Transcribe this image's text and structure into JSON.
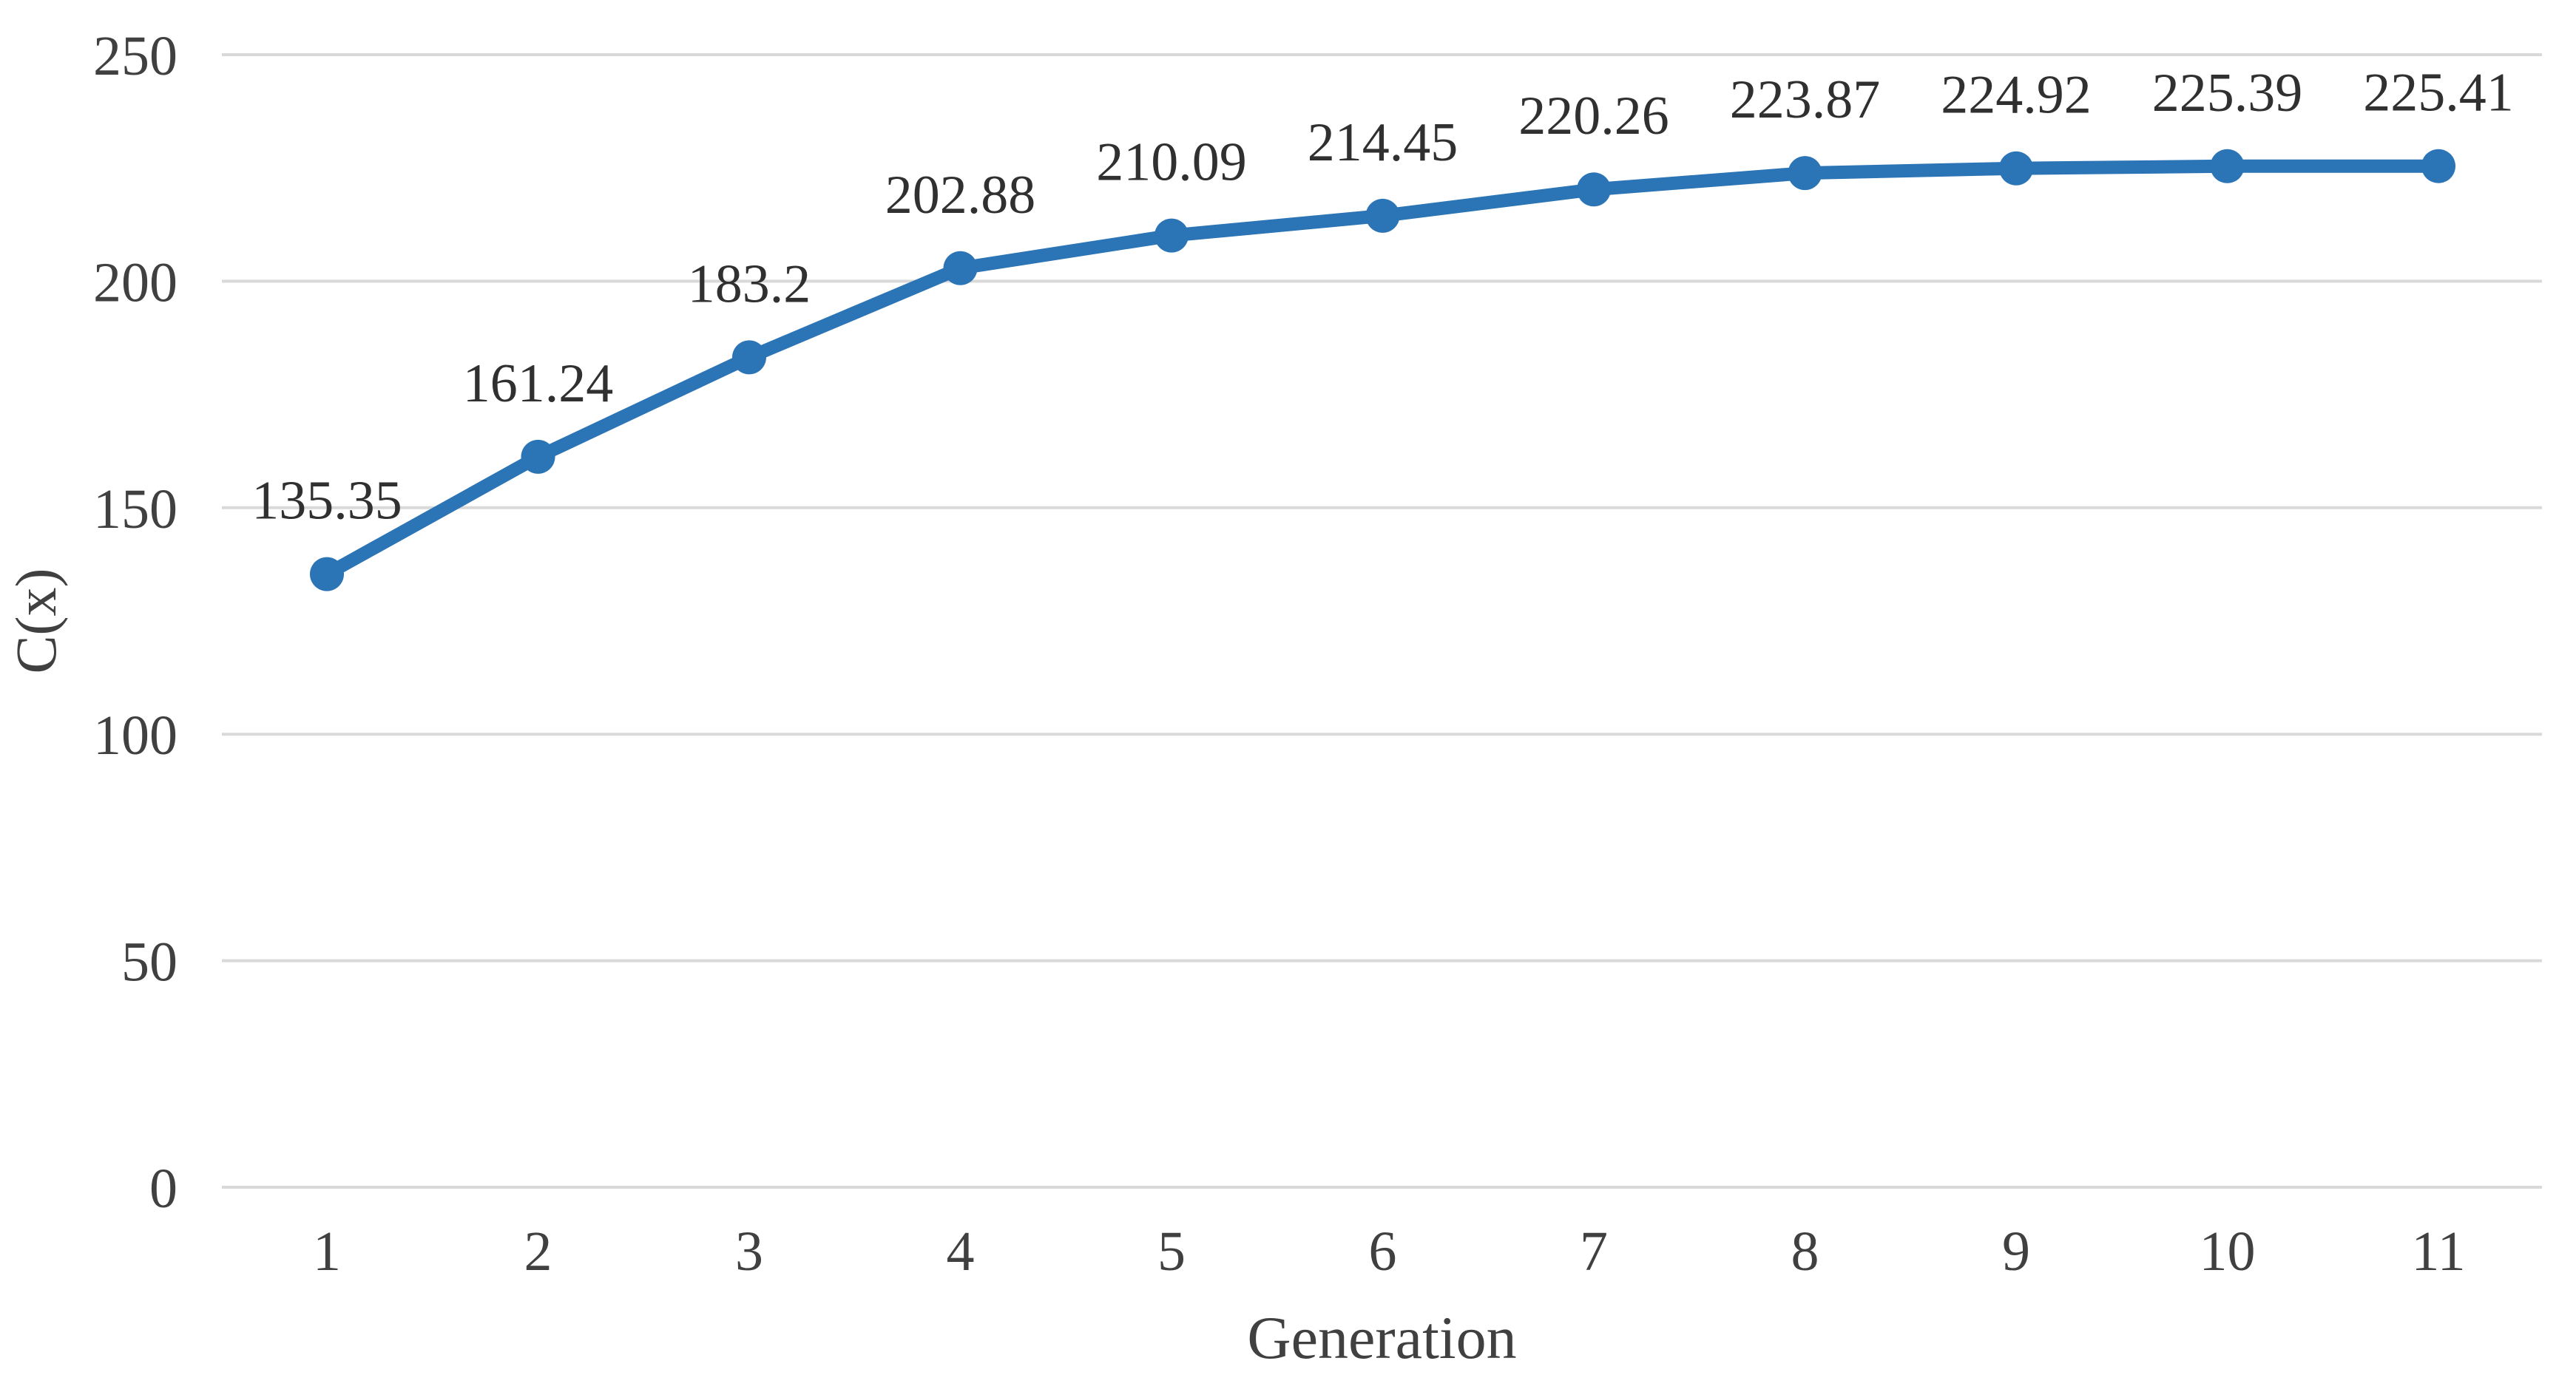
{
  "chart_data": {
    "type": "line",
    "title": "",
    "xlabel": "Generation",
    "ylabel": "C(x)",
    "x": [
      1,
      2,
      3,
      4,
      5,
      6,
      7,
      8,
      9,
      10,
      11
    ],
    "xticklabels": [
      "1",
      "2",
      "3",
      "4",
      "5",
      "6",
      "7",
      "8",
      "9",
      "10",
      "11"
    ],
    "series": [
      {
        "name": "C(x)",
        "values": [
          135.35,
          161.24,
          183.2,
          202.88,
          210.09,
          214.45,
          220.26,
          223.87,
          224.92,
          225.39,
          225.41
        ],
        "point_labels": [
          "135.35",
          "161.24",
          "183.2",
          "202.88",
          "210.09",
          "214.45",
          "220.26",
          "223.87",
          "224.92",
          "225.39",
          "225.41"
        ]
      }
    ],
    "ylim": [
      0,
      250
    ],
    "yticks": [
      0,
      50,
      100,
      150,
      200,
      250
    ],
    "yticklabels": [
      "0",
      "50",
      "100",
      "150",
      "200",
      "250"
    ],
    "grid": true,
    "legend_position": "none",
    "marker": "circle"
  },
  "colors": {
    "line": "#2B74B6",
    "marker": "#2B74B6",
    "gridline": "#D9D9D9",
    "tick_text": "#404040",
    "data_label_text": "#303030",
    "axis_title_text": "#404040",
    "background": "#FFFFFF"
  }
}
